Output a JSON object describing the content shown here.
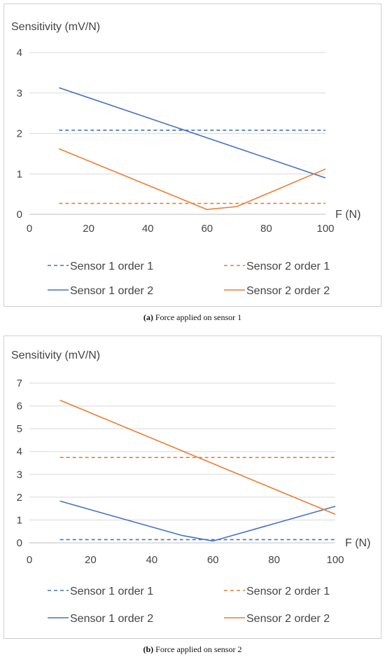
{
  "chart_data": [
    {
      "type": "line",
      "ylabel": "Sensitivity (mV/N)",
      "xlabel": "F (N)",
      "xlim": [
        0,
        100
      ],
      "ylim": [
        0,
        4
      ],
      "xticks": [
        0,
        20,
        40,
        60,
        80,
        100
      ],
      "yticks": [
        0,
        1,
        2,
        3,
        4
      ],
      "grid": "horizontal",
      "legend": "bottom",
      "series": [
        {
          "name": "Sensor 1 order 1",
          "color": "#4472C4",
          "dash": true,
          "x": [
            10,
            100
          ],
          "y": [
            2.08,
            2.08
          ]
        },
        {
          "name": "Sensor 2 order 1",
          "color": "#ED7D31",
          "dash": true,
          "x": [
            10,
            100
          ],
          "y": [
            0.27,
            0.27
          ]
        },
        {
          "name": "Sensor 1 order 2",
          "color": "#4472C4",
          "dash": false,
          "x": [
            10,
            100
          ],
          "y": [
            3.13,
            0.9
          ]
        },
        {
          "name": "Sensor 2 order 2",
          "color": "#ED7D31",
          "dash": false,
          "x": [
            10,
            60,
            70,
            100
          ],
          "y": [
            1.62,
            0.12,
            0.19,
            1.12
          ]
        }
      ]
    },
    {
      "type": "line",
      "ylabel": "Sensitivity (mV/N)",
      "xlabel": "F (N)",
      "xlim": [
        0,
        100
      ],
      "ylim": [
        0,
        7
      ],
      "xticks": [
        0,
        20,
        40,
        60,
        80,
        100
      ],
      "yticks": [
        0,
        1,
        2,
        3,
        4,
        5,
        6,
        7
      ],
      "grid": "horizontal",
      "legend": "bottom",
      "series": [
        {
          "name": "Sensor 1 order 1",
          "color": "#4472C4",
          "dash": true,
          "x": [
            10,
            100
          ],
          "y": [
            0.14,
            0.14
          ]
        },
        {
          "name": "Sensor 2 order 1",
          "color": "#ED7D31",
          "dash": true,
          "x": [
            10,
            100
          ],
          "y": [
            3.74,
            3.74
          ]
        },
        {
          "name": "Sensor 1 order 2",
          "color": "#4472C4",
          "dash": false,
          "x": [
            10,
            50,
            60,
            100
          ],
          "y": [
            1.83,
            0.32,
            0.08,
            1.6
          ]
        },
        {
          "name": "Sensor 2 order 2",
          "color": "#ED7D31",
          "dash": false,
          "x": [
            10,
            100
          ],
          "y": [
            6.25,
            1.25
          ]
        }
      ]
    }
  ],
  "captions": [
    {
      "label": "(a)",
      "text": " Force applied on sensor 1"
    },
    {
      "label": "(b)",
      "text": " Force applied on sensor 2"
    }
  ]
}
